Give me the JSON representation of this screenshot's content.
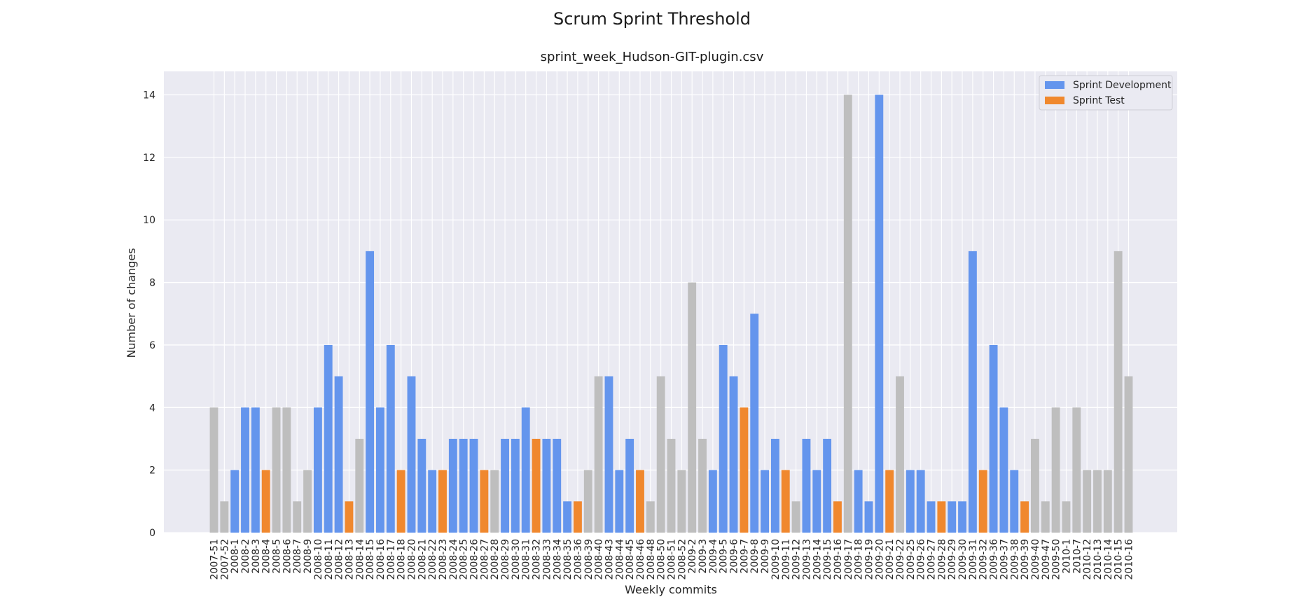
{
  "figure_title": "Scrum Sprint Threshold",
  "chart_data": {
    "type": "bar",
    "title": "sprint_week_Hudson-GIT-plugin.csv",
    "xlabel": "Weekly commits",
    "ylabel": "Number of changes",
    "ylim": [
      0,
      14.75
    ],
    "yticks": [
      0,
      2,
      4,
      6,
      8,
      10,
      12,
      14
    ],
    "grid": true,
    "legend_position": "top-right",
    "colors": {
      "dev": "#6495ED",
      "test": "#F0882E",
      "none": "#BEBEBE",
      "plot_bg": "#EAEAF2"
    },
    "legend": [
      {
        "name": "Sprint Development",
        "kind": "dev"
      },
      {
        "name": "Sprint Test",
        "kind": "test"
      }
    ],
    "bars": [
      {
        "label": "2007-51",
        "value": 4,
        "kind": "none"
      },
      {
        "label": "2007-52",
        "value": 1,
        "kind": "none"
      },
      {
        "label": "2008-1",
        "value": 2,
        "kind": "dev"
      },
      {
        "label": "2008-2",
        "value": 4,
        "kind": "dev"
      },
      {
        "label": "2008-3",
        "value": 4,
        "kind": "dev"
      },
      {
        "label": "2008-4",
        "value": 2,
        "kind": "test"
      },
      {
        "label": "2008-5",
        "value": 4,
        "kind": "none"
      },
      {
        "label": "2008-6",
        "value": 4,
        "kind": "none"
      },
      {
        "label": "2008-7",
        "value": 1,
        "kind": "none"
      },
      {
        "label": "2008-9",
        "value": 2,
        "kind": "none"
      },
      {
        "label": "2008-10",
        "value": 4,
        "kind": "dev"
      },
      {
        "label": "2008-11",
        "value": 6,
        "kind": "dev"
      },
      {
        "label": "2008-12",
        "value": 5,
        "kind": "dev"
      },
      {
        "label": "2008-13",
        "value": 1,
        "kind": "test"
      },
      {
        "label": "2008-14",
        "value": 3,
        "kind": "none"
      },
      {
        "label": "2008-15",
        "value": 9,
        "kind": "dev"
      },
      {
        "label": "2008-16",
        "value": 4,
        "kind": "dev"
      },
      {
        "label": "2008-17",
        "value": 6,
        "kind": "dev"
      },
      {
        "label": "2008-18",
        "value": 2,
        "kind": "test"
      },
      {
        "label": "2008-20",
        "value": 5,
        "kind": "dev"
      },
      {
        "label": "2008-21",
        "value": 3,
        "kind": "dev"
      },
      {
        "label": "2008-22",
        "value": 2,
        "kind": "dev"
      },
      {
        "label": "2008-23",
        "value": 2,
        "kind": "test"
      },
      {
        "label": "2008-24",
        "value": 3,
        "kind": "dev"
      },
      {
        "label": "2008-25",
        "value": 3,
        "kind": "dev"
      },
      {
        "label": "2008-26",
        "value": 3,
        "kind": "dev"
      },
      {
        "label": "2008-27",
        "value": 2,
        "kind": "test"
      },
      {
        "label": "2008-28",
        "value": 2,
        "kind": "none"
      },
      {
        "label": "2008-29",
        "value": 3,
        "kind": "dev"
      },
      {
        "label": "2008-30",
        "value": 3,
        "kind": "dev"
      },
      {
        "label": "2008-31",
        "value": 4,
        "kind": "dev"
      },
      {
        "label": "2008-32",
        "value": 3,
        "kind": "test"
      },
      {
        "label": "2008-33",
        "value": 3,
        "kind": "dev"
      },
      {
        "label": "2008-34",
        "value": 3,
        "kind": "dev"
      },
      {
        "label": "2008-35",
        "value": 1,
        "kind": "dev"
      },
      {
        "label": "2008-36",
        "value": 1,
        "kind": "test"
      },
      {
        "label": "2008-39",
        "value": 2,
        "kind": "none"
      },
      {
        "label": "2008-40",
        "value": 5,
        "kind": "none"
      },
      {
        "label": "2008-43",
        "value": 5,
        "kind": "dev"
      },
      {
        "label": "2008-44",
        "value": 2,
        "kind": "dev"
      },
      {
        "label": "2008-45",
        "value": 3,
        "kind": "dev"
      },
      {
        "label": "2008-46",
        "value": 2,
        "kind": "test"
      },
      {
        "label": "2008-48",
        "value": 1,
        "kind": "none"
      },
      {
        "label": "2008-50",
        "value": 5,
        "kind": "none"
      },
      {
        "label": "2008-51",
        "value": 3,
        "kind": "none"
      },
      {
        "label": "2008-52",
        "value": 2,
        "kind": "none"
      },
      {
        "label": "2009-2",
        "value": 8,
        "kind": "none"
      },
      {
        "label": "2009-3",
        "value": 3,
        "kind": "none"
      },
      {
        "label": "2009-4",
        "value": 2,
        "kind": "dev"
      },
      {
        "label": "2009-5",
        "value": 6,
        "kind": "dev"
      },
      {
        "label": "2009-6",
        "value": 5,
        "kind": "dev"
      },
      {
        "label": "2009-7",
        "value": 4,
        "kind": "test"
      },
      {
        "label": "2009-8",
        "value": 7,
        "kind": "dev"
      },
      {
        "label": "2009-9",
        "value": 2,
        "kind": "dev"
      },
      {
        "label": "2009-10",
        "value": 3,
        "kind": "dev"
      },
      {
        "label": "2009-11",
        "value": 2,
        "kind": "test"
      },
      {
        "label": "2009-12",
        "value": 1,
        "kind": "none"
      },
      {
        "label": "2009-13",
        "value": 3,
        "kind": "dev"
      },
      {
        "label": "2009-14",
        "value": 2,
        "kind": "dev"
      },
      {
        "label": "2009-15",
        "value": 3,
        "kind": "dev"
      },
      {
        "label": "2009-16",
        "value": 1,
        "kind": "test"
      },
      {
        "label": "2009-17",
        "value": 14,
        "kind": "none"
      },
      {
        "label": "2009-18",
        "value": 2,
        "kind": "dev"
      },
      {
        "label": "2009-19",
        "value": 1,
        "kind": "dev"
      },
      {
        "label": "2009-20",
        "value": 14,
        "kind": "dev"
      },
      {
        "label": "2009-21",
        "value": 2,
        "kind": "test"
      },
      {
        "label": "2009-22",
        "value": 5,
        "kind": "none"
      },
      {
        "label": "2009-25",
        "value": 2,
        "kind": "dev"
      },
      {
        "label": "2009-26",
        "value": 2,
        "kind": "dev"
      },
      {
        "label": "2009-27",
        "value": 1,
        "kind": "dev"
      },
      {
        "label": "2009-28",
        "value": 1,
        "kind": "test"
      },
      {
        "label": "2009-29",
        "value": 1,
        "kind": "dev"
      },
      {
        "label": "2009-30",
        "value": 1,
        "kind": "dev"
      },
      {
        "label": "2009-31",
        "value": 9,
        "kind": "dev"
      },
      {
        "label": "2009-32",
        "value": 2,
        "kind": "test"
      },
      {
        "label": "2009-36",
        "value": 6,
        "kind": "dev"
      },
      {
        "label": "2009-37",
        "value": 4,
        "kind": "dev"
      },
      {
        "label": "2009-38",
        "value": 2,
        "kind": "dev"
      },
      {
        "label": "2009-39",
        "value": 1,
        "kind": "test"
      },
      {
        "label": "2009-40",
        "value": 3,
        "kind": "none"
      },
      {
        "label": "2009-47",
        "value": 1,
        "kind": "none"
      },
      {
        "label": "2009-50",
        "value": 4,
        "kind": "none"
      },
      {
        "label": "2010-1",
        "value": 1,
        "kind": "none"
      },
      {
        "label": "2010-7",
        "value": 4,
        "kind": "none"
      },
      {
        "label": "2010-12",
        "value": 2,
        "kind": "none"
      },
      {
        "label": "2010-13",
        "value": 2,
        "kind": "none"
      },
      {
        "label": "2010-14",
        "value": 2,
        "kind": "none"
      },
      {
        "label": "2010-15",
        "value": 9,
        "kind": "none"
      },
      {
        "label": "2010-16",
        "value": 5,
        "kind": "none"
      }
    ]
  }
}
